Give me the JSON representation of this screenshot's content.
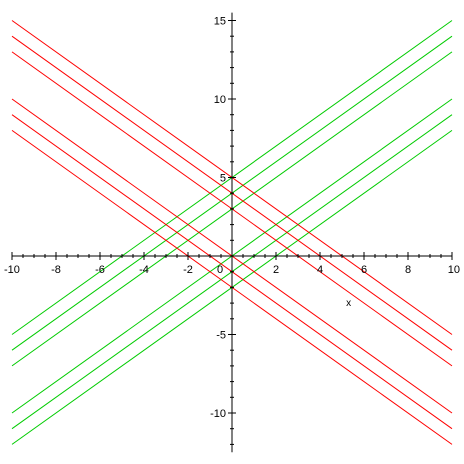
{
  "chart_data": {
    "type": "line",
    "title": "",
    "xlabel": "x",
    "ylabel": "",
    "xlim": [
      -10,
      10
    ],
    "ylim": [
      -12.5,
      15.5
    ],
    "x_ticks": [
      -10,
      -8,
      -6,
      -4,
      -2,
      0,
      2,
      4,
      6,
      8,
      10
    ],
    "x_tick_labels": [
      "-10",
      "-8",
      "-6",
      "-4",
      "-2",
      "0",
      "2",
      "4",
      "6",
      "8",
      "10"
    ],
    "y_ticks": [
      -10,
      -5,
      5,
      10,
      15
    ],
    "y_tick_labels": [
      "-10",
      "-5",
      "5",
      "10",
      "15"
    ],
    "grid": false,
    "colors": {
      "positive_slope": "#00cc00",
      "negative_slope": "#ff0000",
      "axes": "#000000"
    },
    "series": [
      {
        "color": "#00cc00",
        "x": [
          -10,
          10
        ],
        "y": [
          -5,
          15
        ]
      },
      {
        "color": "#00cc00",
        "x": [
          -10,
          10
        ],
        "y": [
          -6,
          14
        ]
      },
      {
        "color": "#00cc00",
        "x": [
          -10,
          10
        ],
        "y": [
          -7,
          13
        ]
      },
      {
        "color": "#00cc00",
        "x": [
          -10,
          10
        ],
        "y": [
          -10,
          10
        ]
      },
      {
        "color": "#00cc00",
        "x": [
          -10,
          10
        ],
        "y": [
          -11,
          9
        ]
      },
      {
        "color": "#00cc00",
        "x": [
          -10,
          10
        ],
        "y": [
          -12,
          8
        ]
      },
      {
        "color": "#ff0000",
        "x": [
          -10,
          10
        ],
        "y": [
          15,
          -5
        ]
      },
      {
        "color": "#ff0000",
        "x": [
          -10,
          10
        ],
        "y": [
          14,
          -6
        ]
      },
      {
        "color": "#ff0000",
        "x": [
          -10,
          10
        ],
        "y": [
          13,
          -7
        ]
      },
      {
        "color": "#ff0000",
        "x": [
          -10,
          10
        ],
        "y": [
          10,
          -10
        ]
      },
      {
        "color": "#ff0000",
        "x": [
          -10,
          10
        ],
        "y": [
          9,
          -11
        ]
      },
      {
        "color": "#ff0000",
        "x": [
          -10,
          10
        ],
        "y": [
          8,
          -12
        ]
      }
    ]
  }
}
